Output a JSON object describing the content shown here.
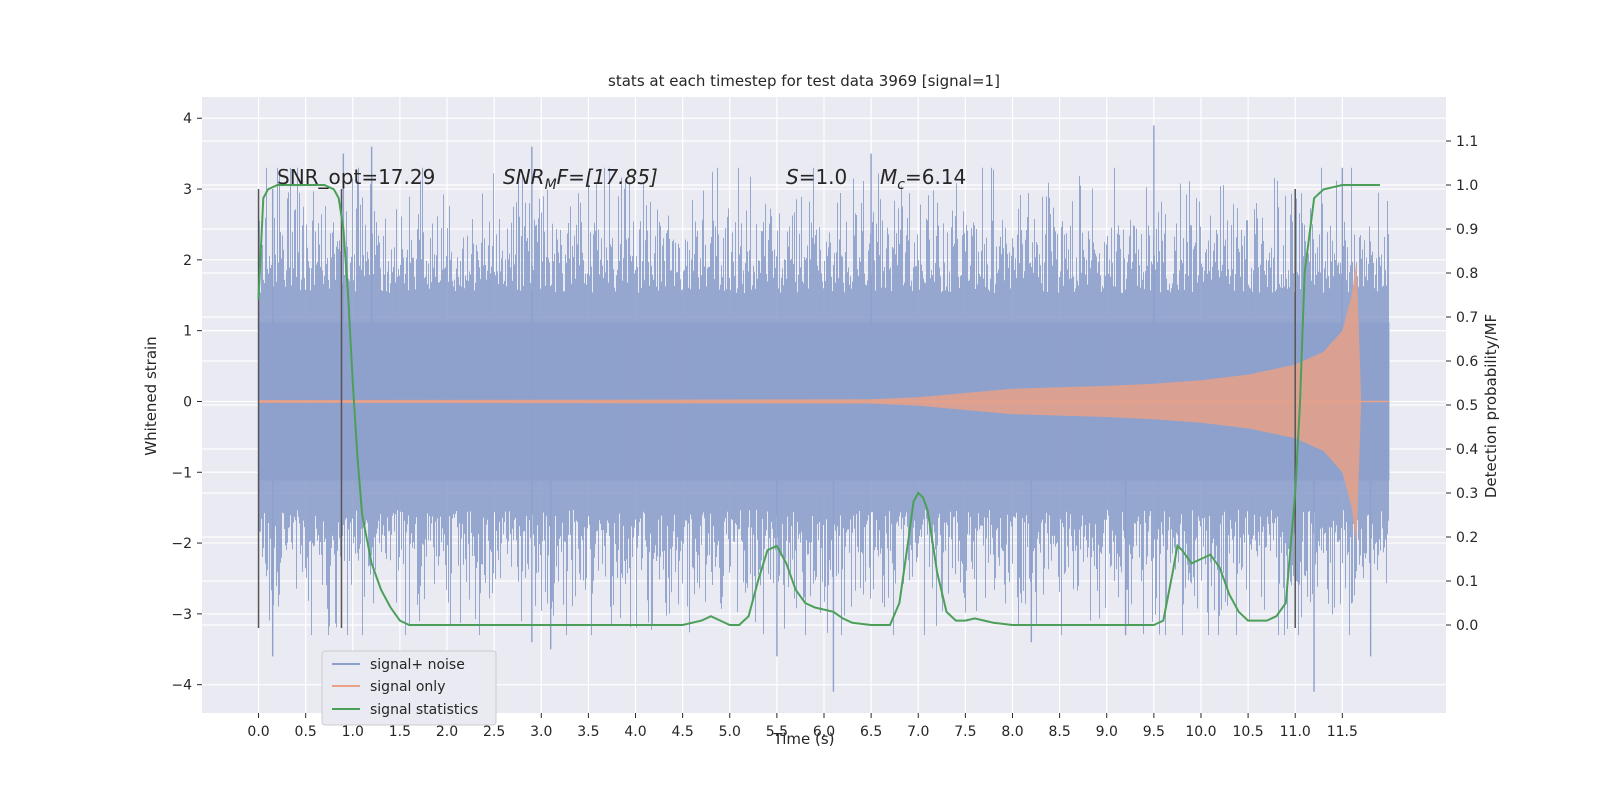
{
  "chart_data": {
    "type": "line",
    "title": "stats at each timestep for test data 3969 [signal=1]",
    "xlabel": "Time (s)",
    "ylabel_left": "Whitened strain",
    "ylabel_right": "Detection probability/MF",
    "xlim": [
      -0.6,
      12.6
    ],
    "ylim_left": [
      -4.4,
      4.3
    ],
    "ylim_right": [
      -0.2,
      1.2
    ],
    "x_ticks": [
      0.0,
      0.5,
      1.0,
      1.5,
      2.0,
      2.5,
      3.0,
      3.5,
      4.0,
      4.5,
      5.0,
      5.5,
      6.0,
      6.5,
      7.0,
      7.5,
      8.0,
      8.5,
      9.0,
      9.5,
      10.0,
      10.5,
      11.0,
      11.5
    ],
    "x_tick_labels": [
      "0.0",
      "0.5",
      "1.0",
      "1.5",
      "2.0",
      "2.5",
      "3.0",
      "3.5",
      "4.0",
      "4.5",
      "5.0",
      "5.5",
      "6.0",
      "6.5",
      "7.0",
      "7.5",
      "8.0",
      "8.5",
      "9.0",
      "9.5",
      "10.0",
      "10.5",
      "11.0",
      "11.5"
    ],
    "y_left_ticks": [
      -4,
      -3,
      -2,
      -1,
      0,
      1,
      2,
      3,
      4
    ],
    "y_left_tick_labels": [
      "−4",
      "−3",
      "−2",
      "−1",
      "0",
      "1",
      "2",
      "3",
      "4"
    ],
    "y_right_ticks": [
      0.0,
      0.1,
      0.2,
      0.3,
      0.4,
      0.5,
      0.6,
      0.7,
      0.8,
      0.9,
      1.0,
      1.1
    ],
    "y_right_tick_labels": [
      "0.0",
      "0.1",
      "0.2",
      "0.3",
      "0.4",
      "0.5",
      "0.6",
      "0.7",
      "0.8",
      "0.9",
      "1.0",
      "1.1"
    ],
    "grid": true,
    "legend_position": "bottom-left",
    "annotations": {
      "snr_opt": "SNR_opt=17.29",
      "snr_mf_main": "SNR",
      "snr_mf_sub": "M",
      "snr_mf_rest": "F=[17.85]",
      "s_main": "S",
      "s_rest": "=1.0",
      "mc_main": "M",
      "mc_sub": "c",
      "mc_rest": "=6.14"
    },
    "vertical_lines": [
      0.0,
      0.88,
      11.0
    ],
    "vertical_line_range": [
      -3.2,
      3.0
    ],
    "series": [
      {
        "name": "signal+ noise",
        "color": "#8da0cb",
        "noise_band_x_range": [
          0.0,
          12.0
        ],
        "typical_amplitude": 1.8,
        "extreme_spikes": [
          {
            "x": 0.15,
            "y": 3.0
          },
          {
            "x": 0.9,
            "y": 3.5
          },
          {
            "x": 1.2,
            "y": 3.6
          },
          {
            "x": 2.9,
            "y": 3.6
          },
          {
            "x": 6.5,
            "y": 3.5
          },
          {
            "x": 9.5,
            "y": 3.9
          },
          {
            "x": 11.5,
            "y": 3.3
          },
          {
            "x": 0.15,
            "y": -3.6
          },
          {
            "x": 2.9,
            "y": -3.4
          },
          {
            "x": 3.1,
            "y": -3.5
          },
          {
            "x": 5.5,
            "y": -3.6
          },
          {
            "x": 6.1,
            "y": -4.1
          },
          {
            "x": 8.2,
            "y": -3.4
          },
          {
            "x": 9.2,
            "y": -3.3
          },
          {
            "x": 11.2,
            "y": -4.1
          },
          {
            "x": 11.8,
            "y": -3.6
          }
        ]
      },
      {
        "name": "signal only",
        "color": "#e8a187",
        "envelope": {
          "x": [
            0.0,
            6.5,
            7.0,
            7.5,
            8.0,
            8.5,
            9.0,
            9.5,
            10.0,
            10.5,
            11.0,
            11.3,
            11.5,
            11.6,
            11.65,
            11.7,
            12.0
          ],
          "amplitude": [
            0.02,
            0.03,
            0.06,
            0.12,
            0.18,
            0.2,
            0.22,
            0.25,
            0.3,
            0.38,
            0.52,
            0.7,
            1.0,
            1.5,
            2.0,
            0.0,
            0.0
          ]
        }
      },
      {
        "name": "signal statistics",
        "color": "#4c9f58",
        "axis": "right",
        "x": [
          0.0,
          0.05,
          0.1,
          0.2,
          0.3,
          0.5,
          0.7,
          0.8,
          0.85,
          0.9,
          0.95,
          1.0,
          1.05,
          1.1,
          1.2,
          1.3,
          1.4,
          1.5,
          1.6,
          1.7,
          2.0,
          3.0,
          4.0,
          4.5,
          4.7,
          4.8,
          4.9,
          5.0,
          5.1,
          5.2,
          5.3,
          5.4,
          5.5,
          5.6,
          5.7,
          5.8,
          5.9,
          6.0,
          6.1,
          6.2,
          6.3,
          6.5,
          6.7,
          6.8,
          6.9,
          6.95,
          7.0,
          7.05,
          7.1,
          7.2,
          7.3,
          7.4,
          7.5,
          7.6,
          7.7,
          7.8,
          8.0,
          8.5,
          9.0,
          9.2,
          9.5,
          9.6,
          9.7,
          9.75,
          9.8,
          9.9,
          10.0,
          10.1,
          10.2,
          10.3,
          10.4,
          10.5,
          10.6,
          10.7,
          10.8,
          10.9,
          11.0,
          11.05,
          11.1,
          11.2,
          11.3,
          11.5,
          11.9
        ],
        "y": [
          0.74,
          0.97,
          0.99,
          1.0,
          1.0,
          1.0,
          1.0,
          0.99,
          0.97,
          0.9,
          0.75,
          0.55,
          0.38,
          0.25,
          0.14,
          0.08,
          0.04,
          0.01,
          0.0,
          0.0,
          0.0,
          0.0,
          0.0,
          0.0,
          0.01,
          0.02,
          0.01,
          0.0,
          0.0,
          0.02,
          0.1,
          0.17,
          0.18,
          0.14,
          0.08,
          0.05,
          0.04,
          0.035,
          0.03,
          0.015,
          0.005,
          0.0,
          0.0,
          0.05,
          0.2,
          0.28,
          0.3,
          0.29,
          0.26,
          0.12,
          0.03,
          0.01,
          0.01,
          0.015,
          0.01,
          0.005,
          0.0,
          0.0,
          0.0,
          0.0,
          0.0,
          0.01,
          0.12,
          0.18,
          0.17,
          0.14,
          0.15,
          0.16,
          0.13,
          0.07,
          0.03,
          0.01,
          0.01,
          0.01,
          0.02,
          0.05,
          0.3,
          0.5,
          0.8,
          0.97,
          0.99,
          1.0,
          1.0
        ]
      }
    ]
  }
}
